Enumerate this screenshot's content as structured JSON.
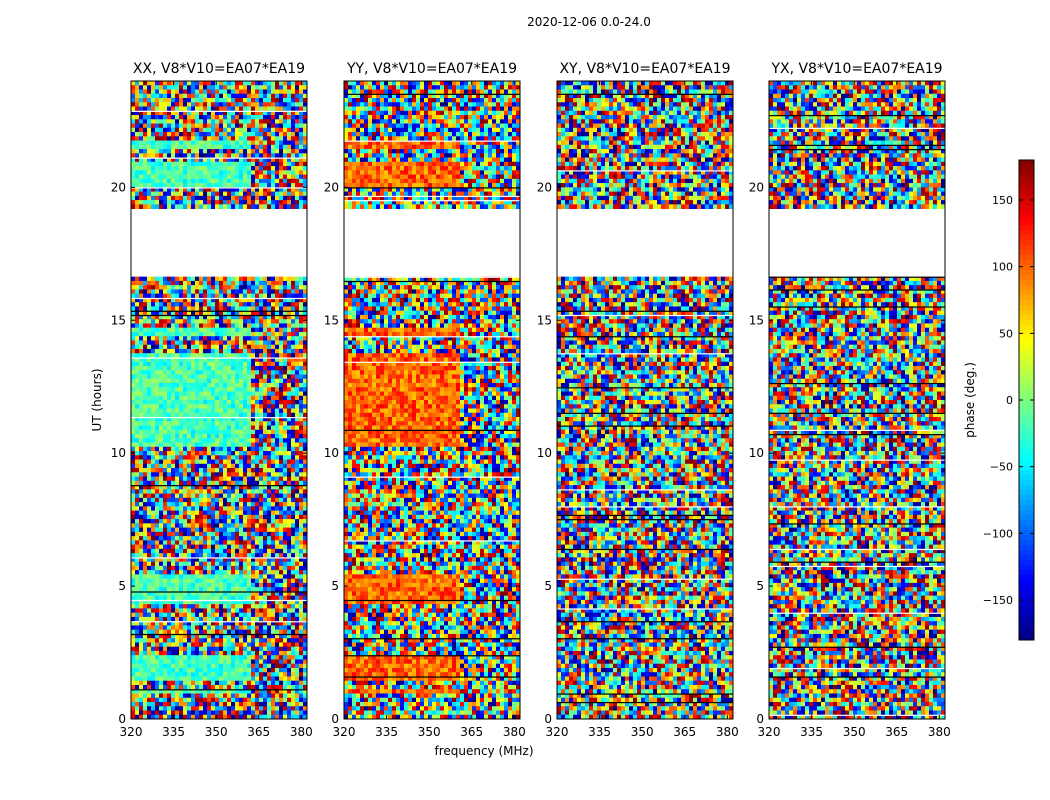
{
  "suptitle": "2020-12-06 0.0-24.0",
  "chart_data": {
    "type": "heatmap",
    "title": "2020-12-06 0.0-24.0",
    "xlabel": "frequency (MHz)",
    "ylabel": "UT (hours)",
    "xlim": [
      320,
      382
    ],
    "ylim": [
      0,
      24
    ],
    "xticks": [
      320,
      335,
      350,
      365,
      380
    ],
    "yticks": [
      0,
      5,
      10,
      15,
      20
    ],
    "panels": [
      {
        "title": "XX, V8*V10=EA07*EA19",
        "coherent_phase": -20,
        "coherent_until_mhz": 362
      },
      {
        "title": "YY, V8*V10=EA07*EA19",
        "coherent_phase": 100,
        "coherent_until_mhz": 361
      },
      {
        "title": "XY, V8*V10=EA07*EA19",
        "coherent_phase": null,
        "coherent_until_mhz": null
      },
      {
        "title": "YX, V8*V10=EA07*EA19",
        "coherent_phase": null,
        "coherent_until_mhz": null
      }
    ],
    "colorbar": {
      "label": "phase (deg.)",
      "range": [
        -180,
        180
      ],
      "ticks": [
        150,
        100,
        50,
        0,
        -50,
        -100,
        -150
      ],
      "colormap": "jet"
    },
    "data_gap_ut": [
      16.6,
      19.2
    ],
    "coherent_intervals_ut": [
      [
        0.9,
        1.1
      ],
      [
        1.4,
        2.4
      ],
      [
        4.3,
        5.5
      ],
      [
        10.3,
        13.8
      ],
      [
        14.4,
        14.7
      ],
      [
        20.0,
        21.0
      ],
      [
        21.4,
        21.8
      ]
    ]
  }
}
